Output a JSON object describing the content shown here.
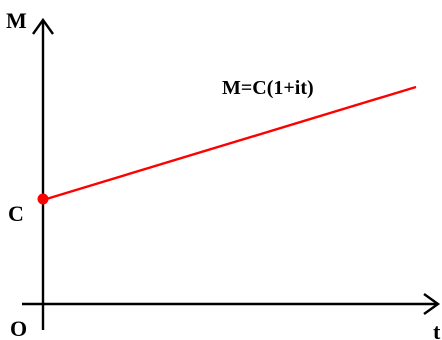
{
  "diagram": {
    "y_axis_label": "M",
    "x_axis_label": "t",
    "origin_label": "O",
    "intercept_label": "C",
    "equation": "M=C(1+it)"
  },
  "colors": {
    "axes": "#000000",
    "line": "#ff0000",
    "point": "#ff0000",
    "background": "#ffffff"
  }
}
